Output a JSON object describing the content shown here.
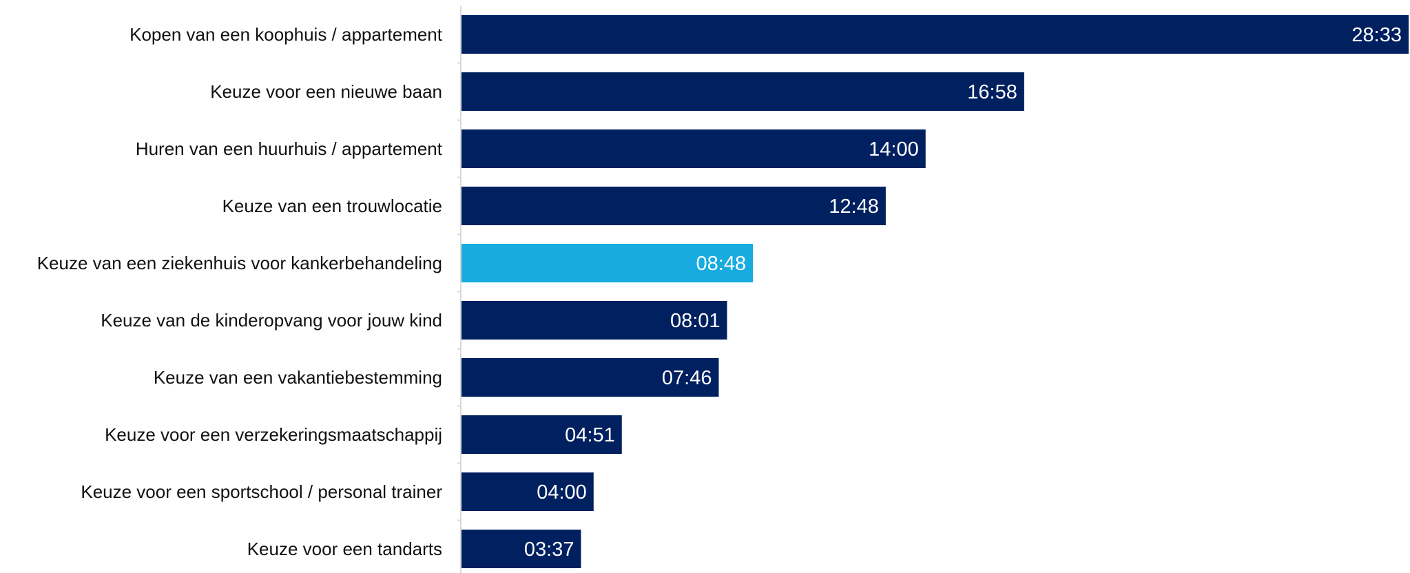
{
  "chart_data": {
    "type": "bar",
    "orientation": "horizontal",
    "categories": [
      "Kopen van een koophuis / appartement",
      "Keuze voor een nieuwe baan",
      "Huren van een huurhuis / appartement",
      "Keuze van een trouwlocatie",
      "Keuze van een ziekenhuis voor kankerbehandeling",
      "Keuze van de kinderopvang voor jouw kind",
      "Keuze van een vakantiebestemming",
      "Keuze voor een verzekeringsmaatschappij",
      "Keuze voor een sportschool / personal trainer",
      "Keuze voor een tandarts"
    ],
    "values": [
      28.55,
      16.97,
      14.0,
      12.8,
      8.8,
      8.02,
      7.77,
      4.85,
      4.0,
      3.62
    ],
    "value_labels": [
      "28:33",
      "16:58",
      "14:00",
      "12:48",
      "08:48",
      "08:01",
      "07:46",
      "04:51",
      "04:00",
      "03:37"
    ],
    "highlight_index": 4,
    "colors": {
      "bar": "#002060",
      "highlight": "#17ABE0",
      "axis": "#D9D9D9",
      "label": "#111111",
      "value_label": "#FFFFFF"
    },
    "xlim": [
      0,
      28.55
    ],
    "grid": false,
    "legend": "none"
  }
}
